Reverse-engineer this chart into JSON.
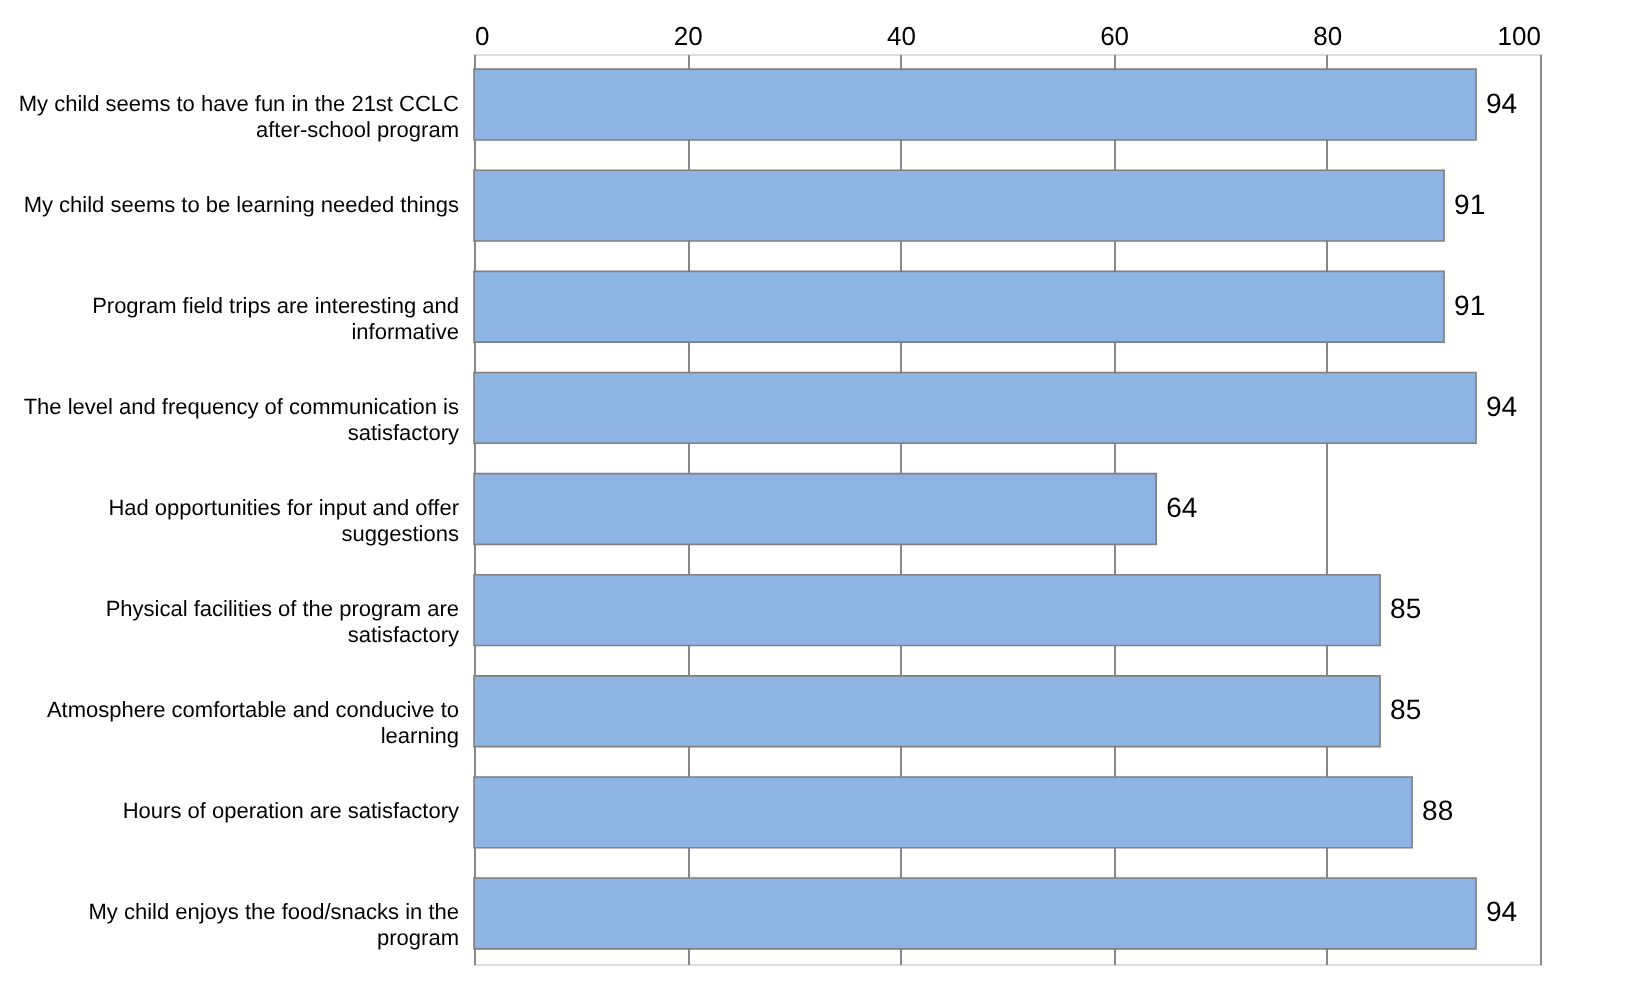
{
  "chart_data": {
    "type": "bar",
    "orientation": "horizontal",
    "categories": [
      "My child seems to have fun in the 21st CCLC after-school program",
      "My child seems to be learning needed things",
      "Program field trips are interesting and informative",
      "The level and frequency of communication is satisfactory",
      "Had opportunities for input and offer suggestions",
      "Physical facilities of the program are satisfactory",
      "Atmosphere comfortable and conducive to learning",
      "Hours of operation are satisfactory",
      "My child enjoys the food/snacks in the program"
    ],
    "series": [
      {
        "color": "#8db4e2",
        "values": [
          94,
          91,
          91,
          94,
          64,
          85,
          85,
          88,
          94
        ]
      }
    ],
    "xlim": [
      0,
      100
    ],
    "xticks": [
      0,
      20,
      40,
      60,
      80,
      100
    ],
    "grid": "x",
    "data_labels": true
  }
}
